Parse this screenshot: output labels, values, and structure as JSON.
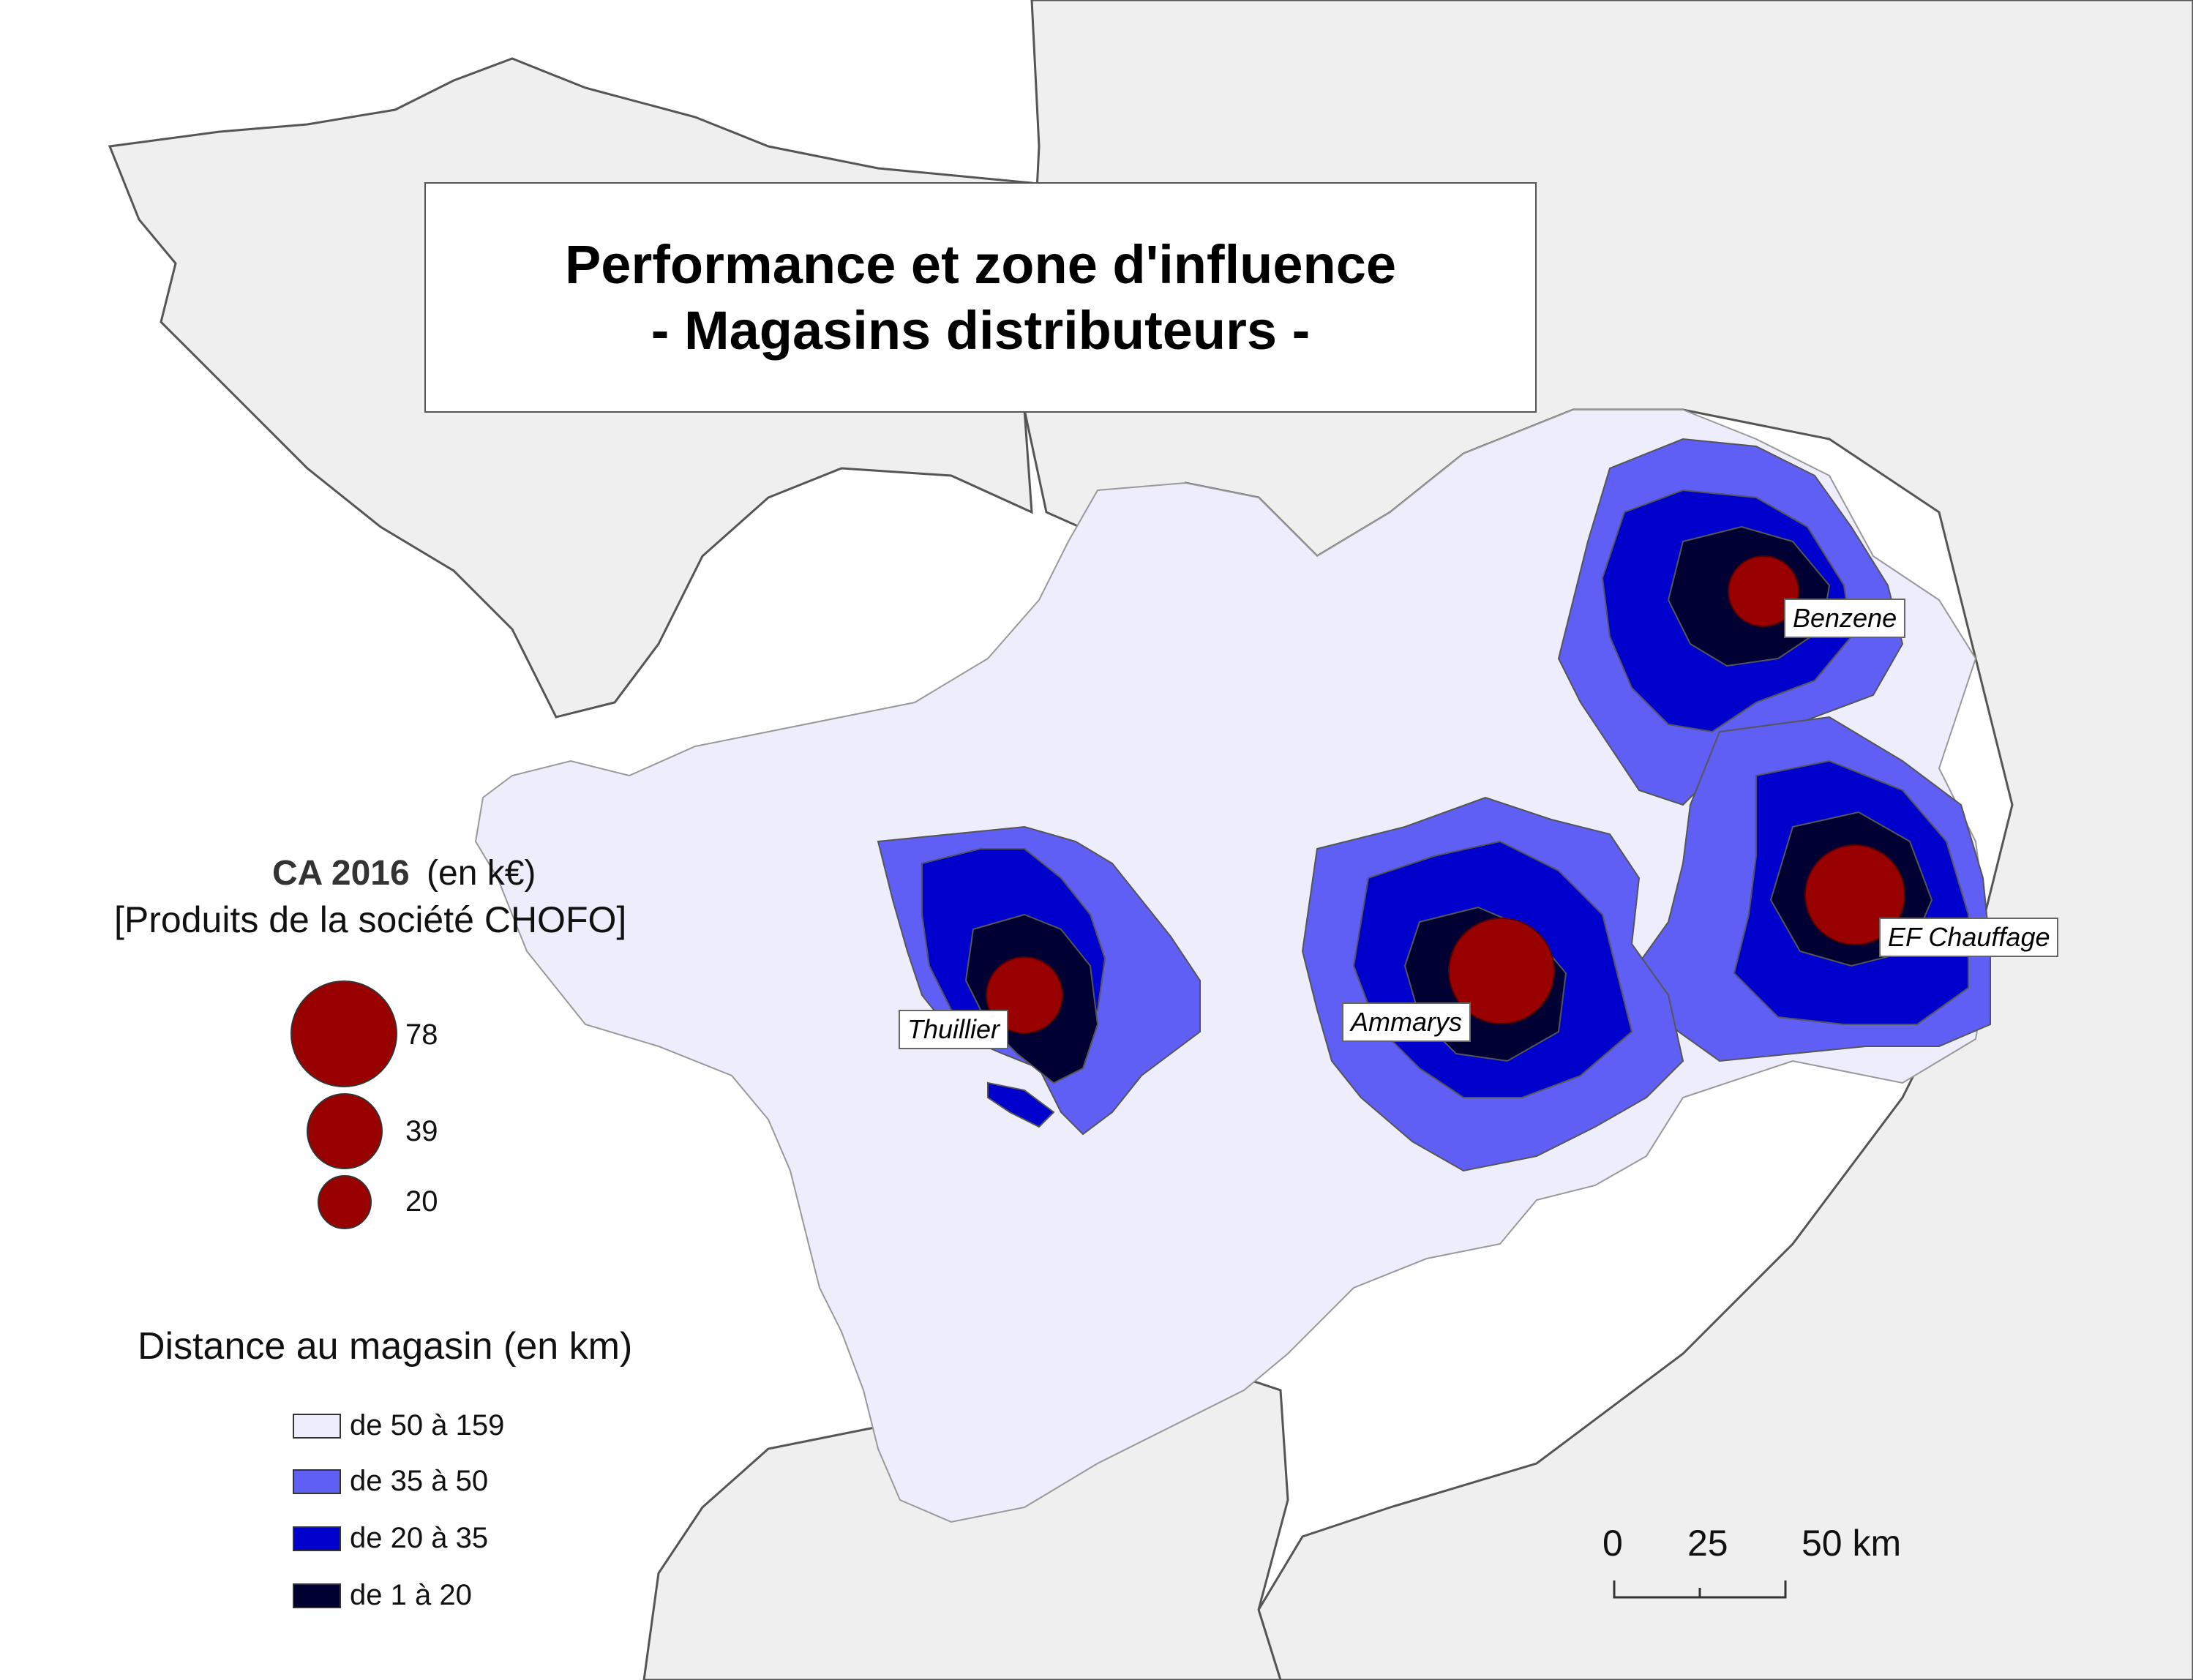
{
  "title": {
    "line1": "Performance et zone d'influence",
    "line2": "- Magasins distributeurs -"
  },
  "ca_legend": {
    "title_bold": "CA 2016",
    "title_unit": "(en k€)",
    "subtitle": "[Produits de la société CHOFO]",
    "values": [
      "78",
      "39",
      "20"
    ],
    "circle_color": "#990000"
  },
  "distance_legend": {
    "title": "Distance au magasin (en km)",
    "classes": [
      {
        "label": "de 50 à 159",
        "color": "#EDEDFC"
      },
      {
        "label": "de 35 à 50",
        "color": "#5F5FF5"
      },
      {
        "label": "de 20 à 35",
        "color": "#0000CC"
      },
      {
        "label": "de 1 à 20",
        "color": "#000033"
      }
    ]
  },
  "stores": [
    {
      "name": "Benzene"
    },
    {
      "name": "EF Chauffage"
    },
    {
      "name": "Ammarys"
    },
    {
      "name": "Thuillier"
    }
  ],
  "scale_bar": {
    "labels": [
      "0",
      "25",
      "50 km"
    ]
  },
  "colors": {
    "sea": "#FFFFFF",
    "land": "#EFEFEF",
    "border": "#555555"
  }
}
